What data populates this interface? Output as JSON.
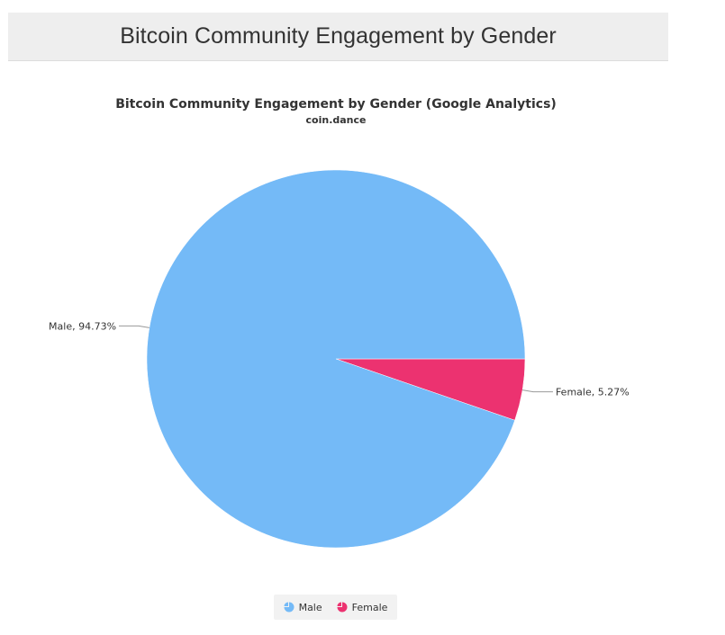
{
  "header": {
    "title": "Bitcoin Community Engagement by Gender"
  },
  "chart_data": {
    "type": "pie",
    "title": "Bitcoin Community Engagement by Gender (Google Analytics)",
    "subtitle": "coin.dance",
    "series": [
      {
        "slices": [
          {
            "name": "Male",
            "value": 94.73,
            "label": "Male, 94.73%",
            "color": "#74baf7"
          },
          {
            "name": "Female",
            "value": 5.27,
            "label": "Female, 5.27%",
            "color": "#ec3270"
          }
        ]
      }
    ],
    "legend": {
      "position": "bottom",
      "items": [
        "Male",
        "Female"
      ]
    }
  },
  "legend": {
    "male_label": "Male",
    "female_label": "Female"
  }
}
